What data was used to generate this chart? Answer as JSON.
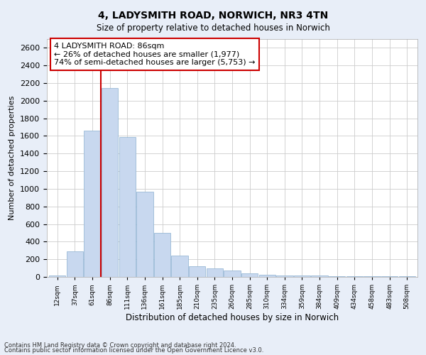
{
  "title": "4, LADYSMITH ROAD, NORWICH, NR3 4TN",
  "subtitle": "Size of property relative to detached houses in Norwich",
  "xlabel": "Distribution of detached houses by size in Norwich",
  "ylabel": "Number of detached properties",
  "categories": [
    "12sqm",
    "37sqm",
    "61sqm",
    "86sqm",
    "111sqm",
    "136sqm",
    "161sqm",
    "185sqm",
    "210sqm",
    "235sqm",
    "260sqm",
    "285sqm",
    "310sqm",
    "334sqm",
    "359sqm",
    "384sqm",
    "409sqm",
    "434sqm",
    "458sqm",
    "483sqm",
    "508sqm"
  ],
  "values": [
    20,
    290,
    1660,
    2140,
    1590,
    970,
    500,
    240,
    120,
    100,
    70,
    40,
    25,
    20,
    15,
    15,
    10,
    10,
    5,
    5,
    10
  ],
  "bar_color": "#c8d8ef",
  "bar_edge_color": "#8ab0d0",
  "vline_x": 2.5,
  "vline_color": "#cc0000",
  "annotation_text": "4 LADYSMITH ROAD: 86sqm\n← 26% of detached houses are smaller (1,977)\n74% of semi-detached houses are larger (5,753) →",
  "annotation_box_color": "#cc0000",
  "ylim": [
    0,
    2700
  ],
  "yticks": [
    0,
    200,
    400,
    600,
    800,
    1000,
    1200,
    1400,
    1600,
    1800,
    2000,
    2200,
    2400,
    2600
  ],
  "footnote1": "Contains HM Land Registry data © Crown copyright and database right 2024.",
  "footnote2": "Contains public sector information licensed under the Open Government Licence v3.0.",
  "background_color": "#e8eef8",
  "plot_background_color": "#ffffff"
}
